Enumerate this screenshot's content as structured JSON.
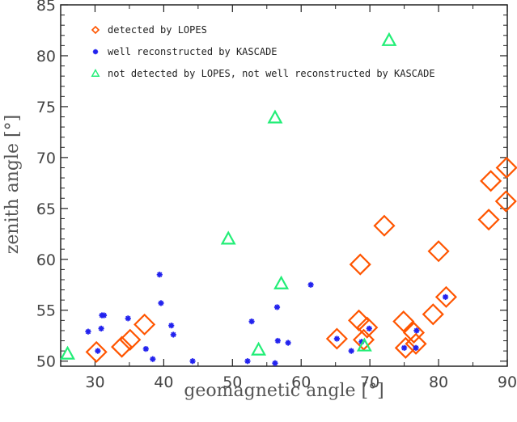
{
  "chart_data": {
    "type": "scatter",
    "xlabel": "geomagnetic angle [°]",
    "ylabel": "zenith angle [°]",
    "xlim": [
      25,
      90
    ],
    "ylim": [
      49.5,
      85
    ],
    "xticks": [
      30,
      40,
      50,
      60,
      70,
      80,
      90
    ],
    "yticks": [
      50,
      55,
      60,
      65,
      70,
      75,
      80,
      85
    ],
    "legend_position": "top-left",
    "series": [
      {
        "name": "detected by LOPES",
        "marker": "diamond",
        "color": "#ff5500",
        "points": [
          [
            30.2,
            50.9
          ],
          [
            33.9,
            51.4
          ],
          [
            35.1,
            52.1
          ],
          [
            37.2,
            53.6
          ],
          [
            65.2,
            52.2
          ],
          [
            68.4,
            54.0
          ],
          [
            68.6,
            59.5
          ],
          [
            69.1,
            52.1
          ],
          [
            69.6,
            53.3
          ],
          [
            72.1,
            63.3
          ],
          [
            74.9,
            53.9
          ],
          [
            75.2,
            51.3
          ],
          [
            76.4,
            52.8
          ],
          [
            76.7,
            51.7
          ],
          [
            79.2,
            54.6
          ],
          [
            80.0,
            60.8
          ],
          [
            81.1,
            56.3
          ],
          [
            87.3,
            63.9
          ],
          [
            87.6,
            67.7
          ],
          [
            89.8,
            65.7
          ],
          [
            89.9,
            69.0
          ]
        ]
      },
      {
        "name": "well reconstructed by KASCADE",
        "marker": "asterisk",
        "color": "#2222ee",
        "points": [
          [
            29.0,
            52.9
          ],
          [
            30.4,
            51.0
          ],
          [
            30.9,
            53.2
          ],
          [
            31.0,
            54.5
          ],
          [
            31.3,
            54.5
          ],
          [
            34.8,
            54.2
          ],
          [
            37.4,
            51.2
          ],
          [
            38.4,
            50.2
          ],
          [
            39.4,
            58.5
          ],
          [
            39.6,
            55.7
          ],
          [
            41.1,
            53.5
          ],
          [
            41.4,
            52.6
          ],
          [
            44.2,
            50.0
          ],
          [
            52.2,
            50.0
          ],
          [
            52.8,
            53.9
          ],
          [
            56.2,
            49.8
          ],
          [
            56.5,
            55.3
          ],
          [
            56.6,
            52.0
          ],
          [
            58.1,
            51.8
          ],
          [
            61.4,
            57.5
          ],
          [
            65.2,
            52.2
          ],
          [
            67.3,
            51.0
          ],
          [
            68.8,
            51.9
          ],
          [
            69.9,
            53.2
          ],
          [
            75.0,
            51.3
          ],
          [
            76.7,
            51.3
          ],
          [
            76.8,
            53.0
          ],
          [
            81.0,
            56.3
          ]
        ]
      },
      {
        "name": "not detected by LOPES, not well reconstructed by KASCADE",
        "marker": "triangle",
        "color": "#22ee77",
        "points": [
          [
            26.0,
            50.7
          ],
          [
            49.4,
            62.0
          ],
          [
            53.8,
            51.1
          ],
          [
            56.2,
            73.9
          ],
          [
            57.1,
            57.6
          ],
          [
            69.2,
            51.5
          ],
          [
            72.8,
            81.5
          ]
        ]
      }
    ]
  }
}
